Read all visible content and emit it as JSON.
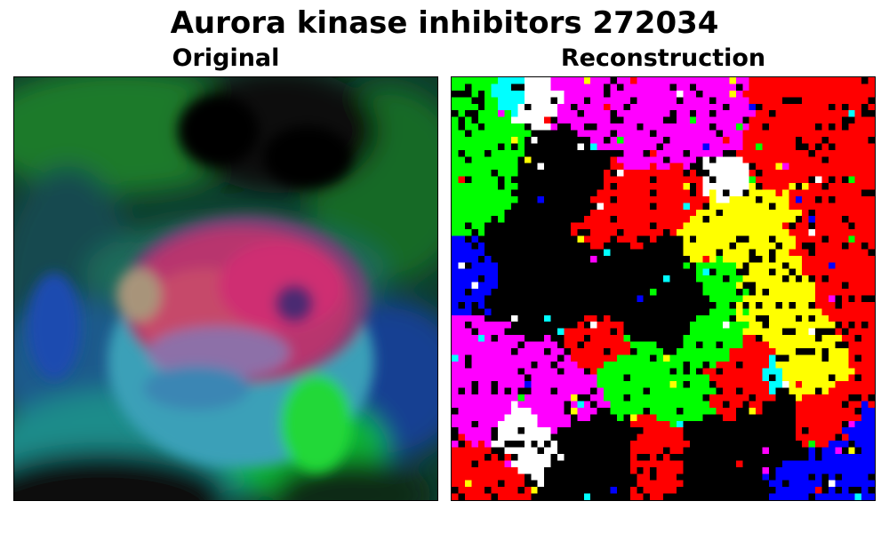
{
  "figure": {
    "title": "Aurora kinase inhibitors 272034"
  },
  "panels": [
    {
      "title": "Original"
    },
    {
      "title": "Reconstruction"
    }
  ],
  "palette": {
    "green": "#00ff00",
    "red": "#ff0000",
    "magenta": "#ff00ff",
    "yellow": "#ffff00",
    "blue": "#0000ff",
    "cyan": "#00ffff",
    "white": "#ffffff",
    "black": "#000000"
  }
}
